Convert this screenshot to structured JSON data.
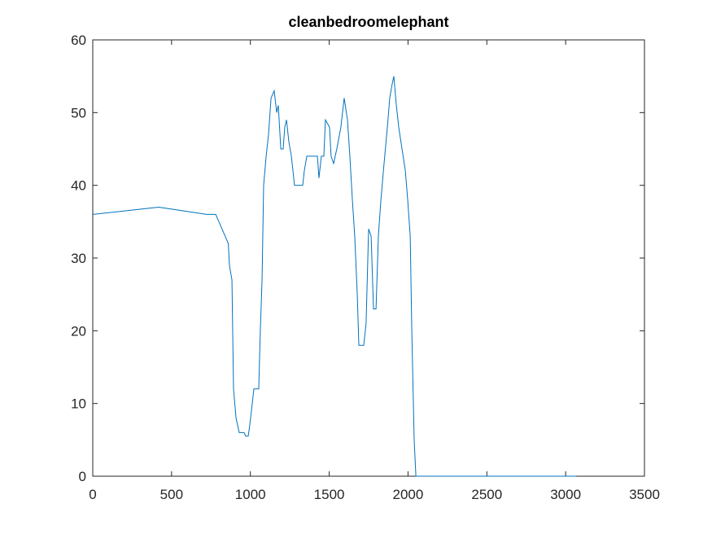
{
  "chart_data": {
    "type": "line",
    "title": "cleanbedroomelephant",
    "x": [
      0,
      418,
      723,
      780,
      800,
      820,
      840,
      860,
      867,
      883,
      893,
      909,
      919,
      929,
      960,
      970,
      986,
      996,
      1012,
      1022,
      1053,
      1063,
      1074,
      1084,
      1100,
      1115,
      1131,
      1151,
      1167,
      1177,
      1193,
      1208,
      1218,
      1229,
      1244,
      1260,
      1280,
      1332,
      1342,
      1358,
      1425,
      1435,
      1450,
      1466,
      1476,
      1502,
      1512,
      1528,
      1548,
      1574,
      1595,
      1616,
      1631,
      1647,
      1662,
      1678,
      1688,
      1719,
      1734,
      1750,
      1766,
      1781,
      1797,
      1812,
      1828,
      1848,
      1869,
      1884,
      1900,
      1910,
      1926,
      1941,
      1962,
      1983,
      1998,
      2014,
      2024,
      2039,
      2050,
      3067
    ],
    "series": [
      {
        "name": "cleanbedroomelephant",
        "color": "#0072bd",
        "values": [
          36,
          37,
          36,
          36,
          35,
          34,
          33,
          32,
          29,
          27,
          12,
          8,
          7,
          6,
          6,
          5.5,
          5.5,
          7,
          10,
          12,
          12,
          20,
          27,
          40,
          44,
          47,
          52,
          53,
          50,
          51,
          45,
          45,
          48,
          49,
          46,
          44,
          40,
          40,
          42,
          44,
          44,
          41,
          44,
          44,
          49,
          48,
          44,
          43,
          45,
          48,
          52,
          49,
          44,
          38,
          33,
          25,
          18,
          18,
          21,
          34,
          33,
          23,
          23,
          33,
          38,
          43,
          48,
          52,
          54,
          55,
          51,
          48,
          45,
          42,
          38,
          33,
          20,
          5,
          0,
          0
        ]
      }
    ],
    "xlim": [
      0,
      3500
    ],
    "xticks": [
      0,
      500,
      1000,
      1500,
      2000,
      2500,
      3000,
      3500
    ],
    "ylim": [
      0,
      60
    ],
    "yticks": [
      0,
      10,
      20,
      30,
      40,
      50,
      60
    ],
    "grid": false
  }
}
